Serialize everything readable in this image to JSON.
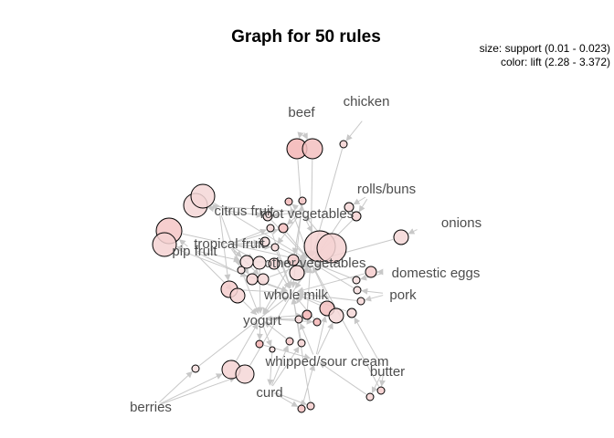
{
  "title": "Graph for 50 rules",
  "legend": {
    "size": "size: support (0.01 - 0.023)",
    "color": "color: lift (2.28 - 3.372)"
  },
  "colors": {
    "edge": "#c8c8c8",
    "node_low_lift": "#f5e3e3",
    "node_high_lift": "#f2a9a9",
    "label": "#4d4d4d"
  },
  "items": {
    "beef": "beef",
    "chicken": "chicken",
    "rolls_buns": "rolls/buns",
    "onions": "onions",
    "citrus_fruit": "citrus fruit",
    "root_vegetables": "root vegetables",
    "tropical_fruit": "tropical fruit",
    "pip_fruit": "pip fruit",
    "other_vegetables": "other vegetables",
    "domestic_eggs": "domestic eggs",
    "pork": "pork",
    "whole_milk": "whole milk",
    "yogurt": "yogurt",
    "whipped_sour_cream": "whipped/sour cream",
    "butter": "butter",
    "curd": "curd",
    "berries": "berries"
  }
}
